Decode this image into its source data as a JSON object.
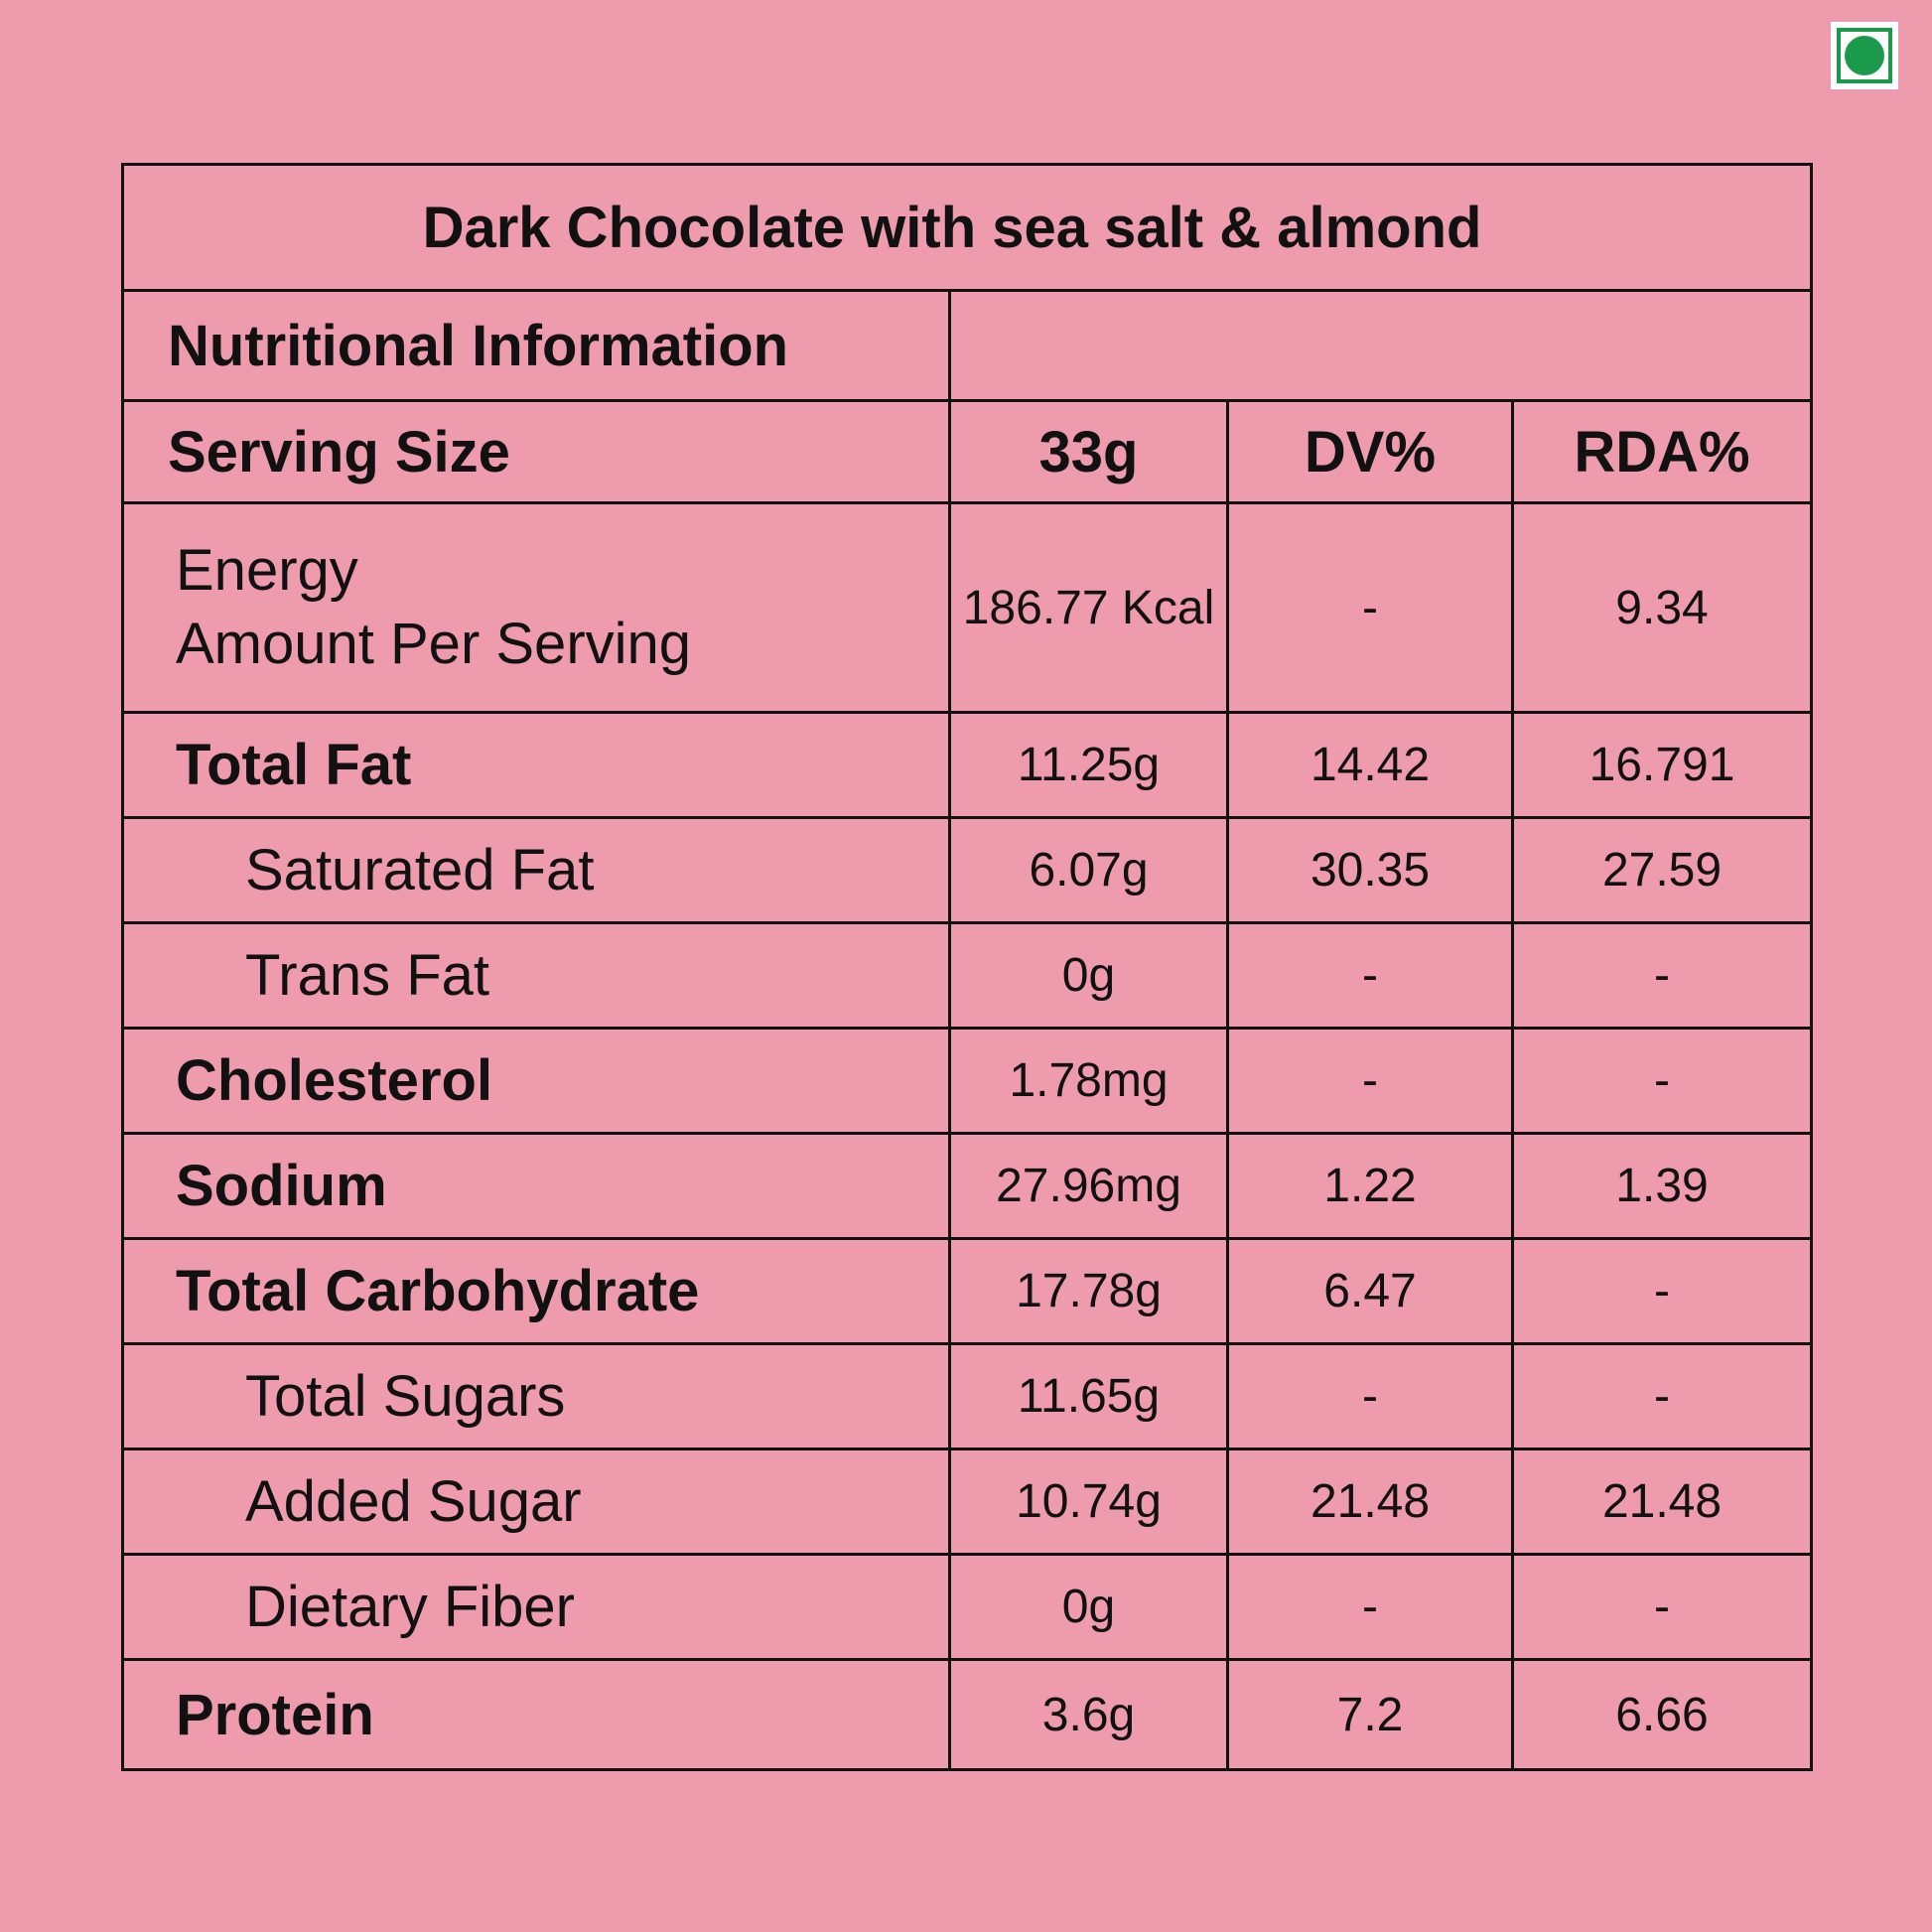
{
  "product_title": "Dark Chocolate with sea salt & almond",
  "section_title": "Nutritional Information",
  "header": {
    "label": "Serving Size",
    "amount": "33g",
    "dv": "DV%",
    "rda": "RDA%"
  },
  "energy": {
    "line1": "Energy",
    "line2": "Amount Per Serving",
    "amount": "186.77 Kcal",
    "dv": "-",
    "rda": "9.34"
  },
  "rows": [
    {
      "label": "Total Fat",
      "amount": "11.25g",
      "dv": "14.42",
      "rda": "16.791"
    },
    {
      "label": "Saturated Fat",
      "amount": "6.07g",
      "dv": "30.35",
      "rda": "27.59"
    },
    {
      "label": "Trans Fat",
      "amount": "0g",
      "dv": "-",
      "rda": "-"
    },
    {
      "label": "Cholesterol",
      "amount": "1.78mg",
      "dv": "-",
      "rda": "-"
    },
    {
      "label": "Sodium",
      "amount": "27.96mg",
      "dv": "1.22",
      "rda": "1.39"
    },
    {
      "label": "Total Carbohydrate",
      "amount": "17.78g",
      "dv": "6.47",
      "rda": "-"
    },
    {
      "label": "Total Sugars",
      "amount": "11.65g",
      "dv": "-",
      "rda": "-"
    },
    {
      "label": "Added Sugar",
      "amount": "10.74g",
      "dv": "21.48",
      "rda": "21.48"
    },
    {
      "label": "Dietary Fiber",
      "amount": "0g",
      "dv": "-",
      "rda": "-"
    },
    {
      "label": "Protein",
      "amount": "3.6g",
      "dv": "7.2",
      "rda": "6.66"
    }
  ],
  "colors": {
    "background": "#ee9bae",
    "veg_mark": "#1a9a4a",
    "border": "#111111"
  }
}
